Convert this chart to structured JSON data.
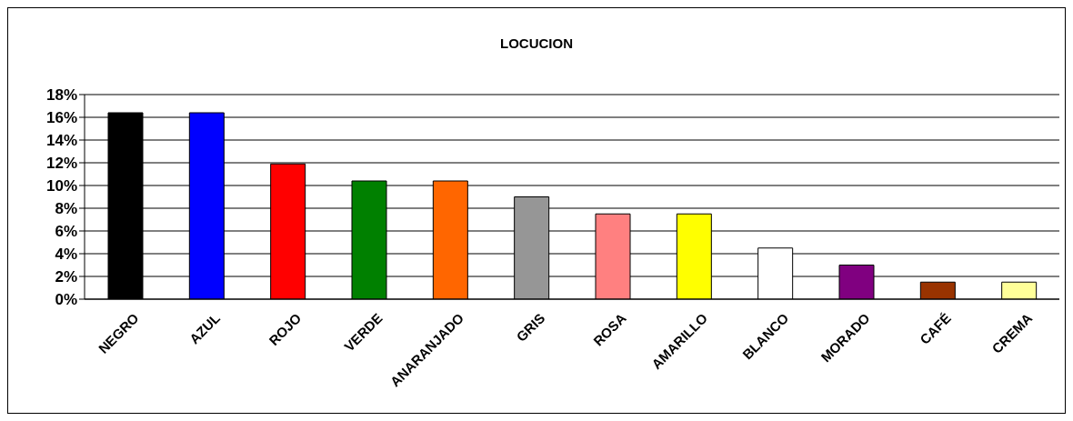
{
  "chart_data": {
    "type": "bar",
    "title": "LOCUCION",
    "categories": [
      "NEGRO",
      "AZUL",
      "ROJO",
      "VERDE",
      "ANARANJADO",
      "GRIS",
      "ROSA",
      "AMARILLO",
      "BLANCO",
      "MORADO",
      "CAFÉ",
      "CREMA"
    ],
    "values": [
      16.4,
      16.4,
      11.9,
      10.4,
      10.4,
      9.0,
      7.5,
      7.5,
      4.5,
      3.0,
      1.5,
      1.5
    ],
    "colors": [
      "#000000",
      "#0000ff",
      "#ff0000",
      "#008000",
      "#ff6600",
      "#969696",
      "#ff8080",
      "#ffff00",
      "#ffffff",
      "#800080",
      "#993300",
      "#ffff99"
    ],
    "ylim": [
      0,
      18
    ],
    "yticks": [
      {
        "value": 0,
        "label": "0%"
      },
      {
        "value": 2,
        "label": "2%"
      },
      {
        "value": 4,
        "label": "4%"
      },
      {
        "value": 6,
        "label": "6%"
      },
      {
        "value": 8,
        "label": "8%"
      },
      {
        "value": 10,
        "label": "10%"
      },
      {
        "value": 12,
        "label": "12%"
      },
      {
        "value": 14,
        "label": "14%"
      },
      {
        "value": 16,
        "label": "16%"
      },
      {
        "value": 18,
        "label": "18%"
      }
    ],
    "grid": "y",
    "legend": false
  }
}
